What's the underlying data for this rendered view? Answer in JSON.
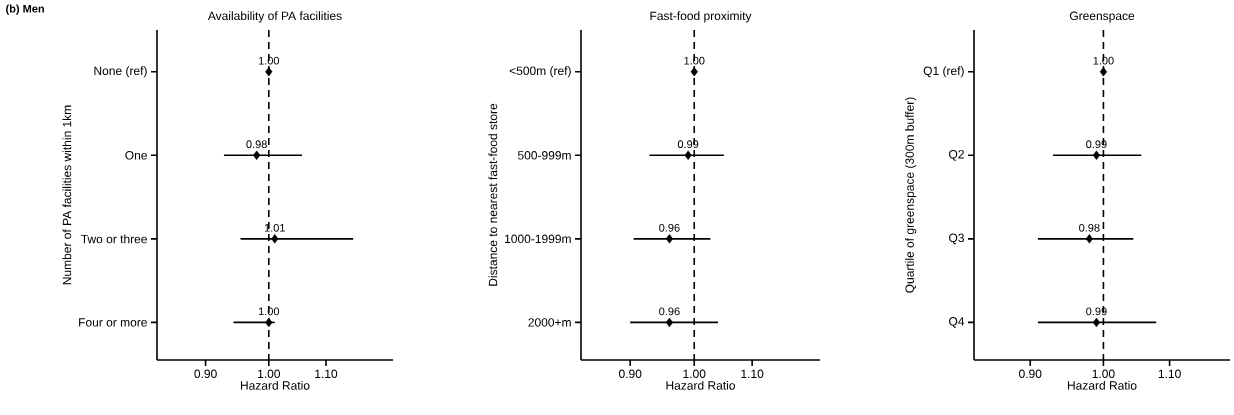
{
  "chart_data": [
    {
      "type": "scatter",
      "orientation": "horizontal",
      "title": "Availability of PA facilities",
      "xlabel": "Hazard Ratio",
      "ylabel": "Number of PA facilities within 1km",
      "annotations": [
        "(b) Men"
      ],
      "categories": [
        "None (ref)",
        "One",
        "Two or three",
        "Four or more"
      ],
      "series": [
        {
          "color": "#000000",
          "values": [
            1.0,
            0.98,
            1.01,
            1.0
          ],
          "errors": [
            null,
            [
              0.928,
              1.057
            ],
            [
              0.954,
              1.151
            ],
            [
              0.943,
              1.01
            ]
          ],
          "value_labels": [
            "1.00",
            "0.98",
            "1.01",
            "1.00"
          ]
        }
      ],
      "marker": "diamond",
      "log": "x",
      "xlim": [
        0.83,
        1.23
      ],
      "xticks": [
        {
          "value": 0.9,
          "label": "0.90"
        },
        {
          "value": 1.0,
          "label": "1.00"
        },
        {
          "value": 1.1,
          "label": "1.10"
        }
      ],
      "ref_lines": [
        {
          "axis": "x",
          "value": 1.0,
          "line_style": "dashed",
          "color": "#000000"
        }
      ]
    },
    {
      "type": "scatter",
      "orientation": "horizontal",
      "title": "Fast-food proximity",
      "xlabel": "Hazard Ratio",
      "ylabel": "Distance to nearest fast-food store",
      "categories": [
        "<500m (ref)",
        "500-999m",
        "1000-1999m",
        "2000+m"
      ],
      "series": [
        {
          "color": "#000000",
          "values": [
            1.0,
            0.99,
            0.96,
            0.96
          ],
          "errors": [
            null,
            [
              0.929,
              1.05
            ],
            [
              0.905,
              1.027
            ],
            [
              0.9,
              1.04
            ]
          ],
          "value_labels": [
            "1.00",
            "0.99",
            "0.96",
            "0.96"
          ]
        }
      ],
      "marker": "diamond",
      "log": "x",
      "xlim": [
        0.83,
        1.23
      ],
      "xticks": [
        {
          "value": 0.9,
          "label": "0.90"
        },
        {
          "value": 1.0,
          "label": "1.00"
        },
        {
          "value": 1.1,
          "label": "1.10"
        }
      ],
      "ref_lines": [
        {
          "axis": "x",
          "value": 1.0,
          "line_style": "dashed",
          "color": "#000000"
        }
      ]
    },
    {
      "type": "scatter",
      "orientation": "horizontal",
      "title": "Greenspace",
      "xlabel": "Hazard Ratio",
      "ylabel": "Quartile of greenspace (300m buffer)",
      "categories": [
        "Q1 (ref)",
        "Q2",
        "Q3",
        "Q4"
      ],
      "series": [
        {
          "color": "#000000",
          "values": [
            1.0,
            0.99,
            0.98,
            0.99
          ],
          "errors": [
            null,
            [
              0.93,
              1.056
            ],
            [
              0.91,
              1.044
            ],
            [
              0.91,
              1.079
            ]
          ],
          "value_labels": [
            "1.00",
            "0.99",
            "0.98",
            "0.99"
          ]
        }
      ],
      "marker": "diamond",
      "log": "x",
      "xlim": [
        0.83,
        1.2
      ],
      "xticks": [
        {
          "value": 0.9,
          "label": "0.90"
        },
        {
          "value": 1.0,
          "label": "1.00"
        },
        {
          "value": 1.1,
          "label": "1.10"
        }
      ],
      "ref_lines": [
        {
          "axis": "x",
          "value": 1.0,
          "line_style": "dashed",
          "color": "#000000"
        }
      ]
    }
  ]
}
